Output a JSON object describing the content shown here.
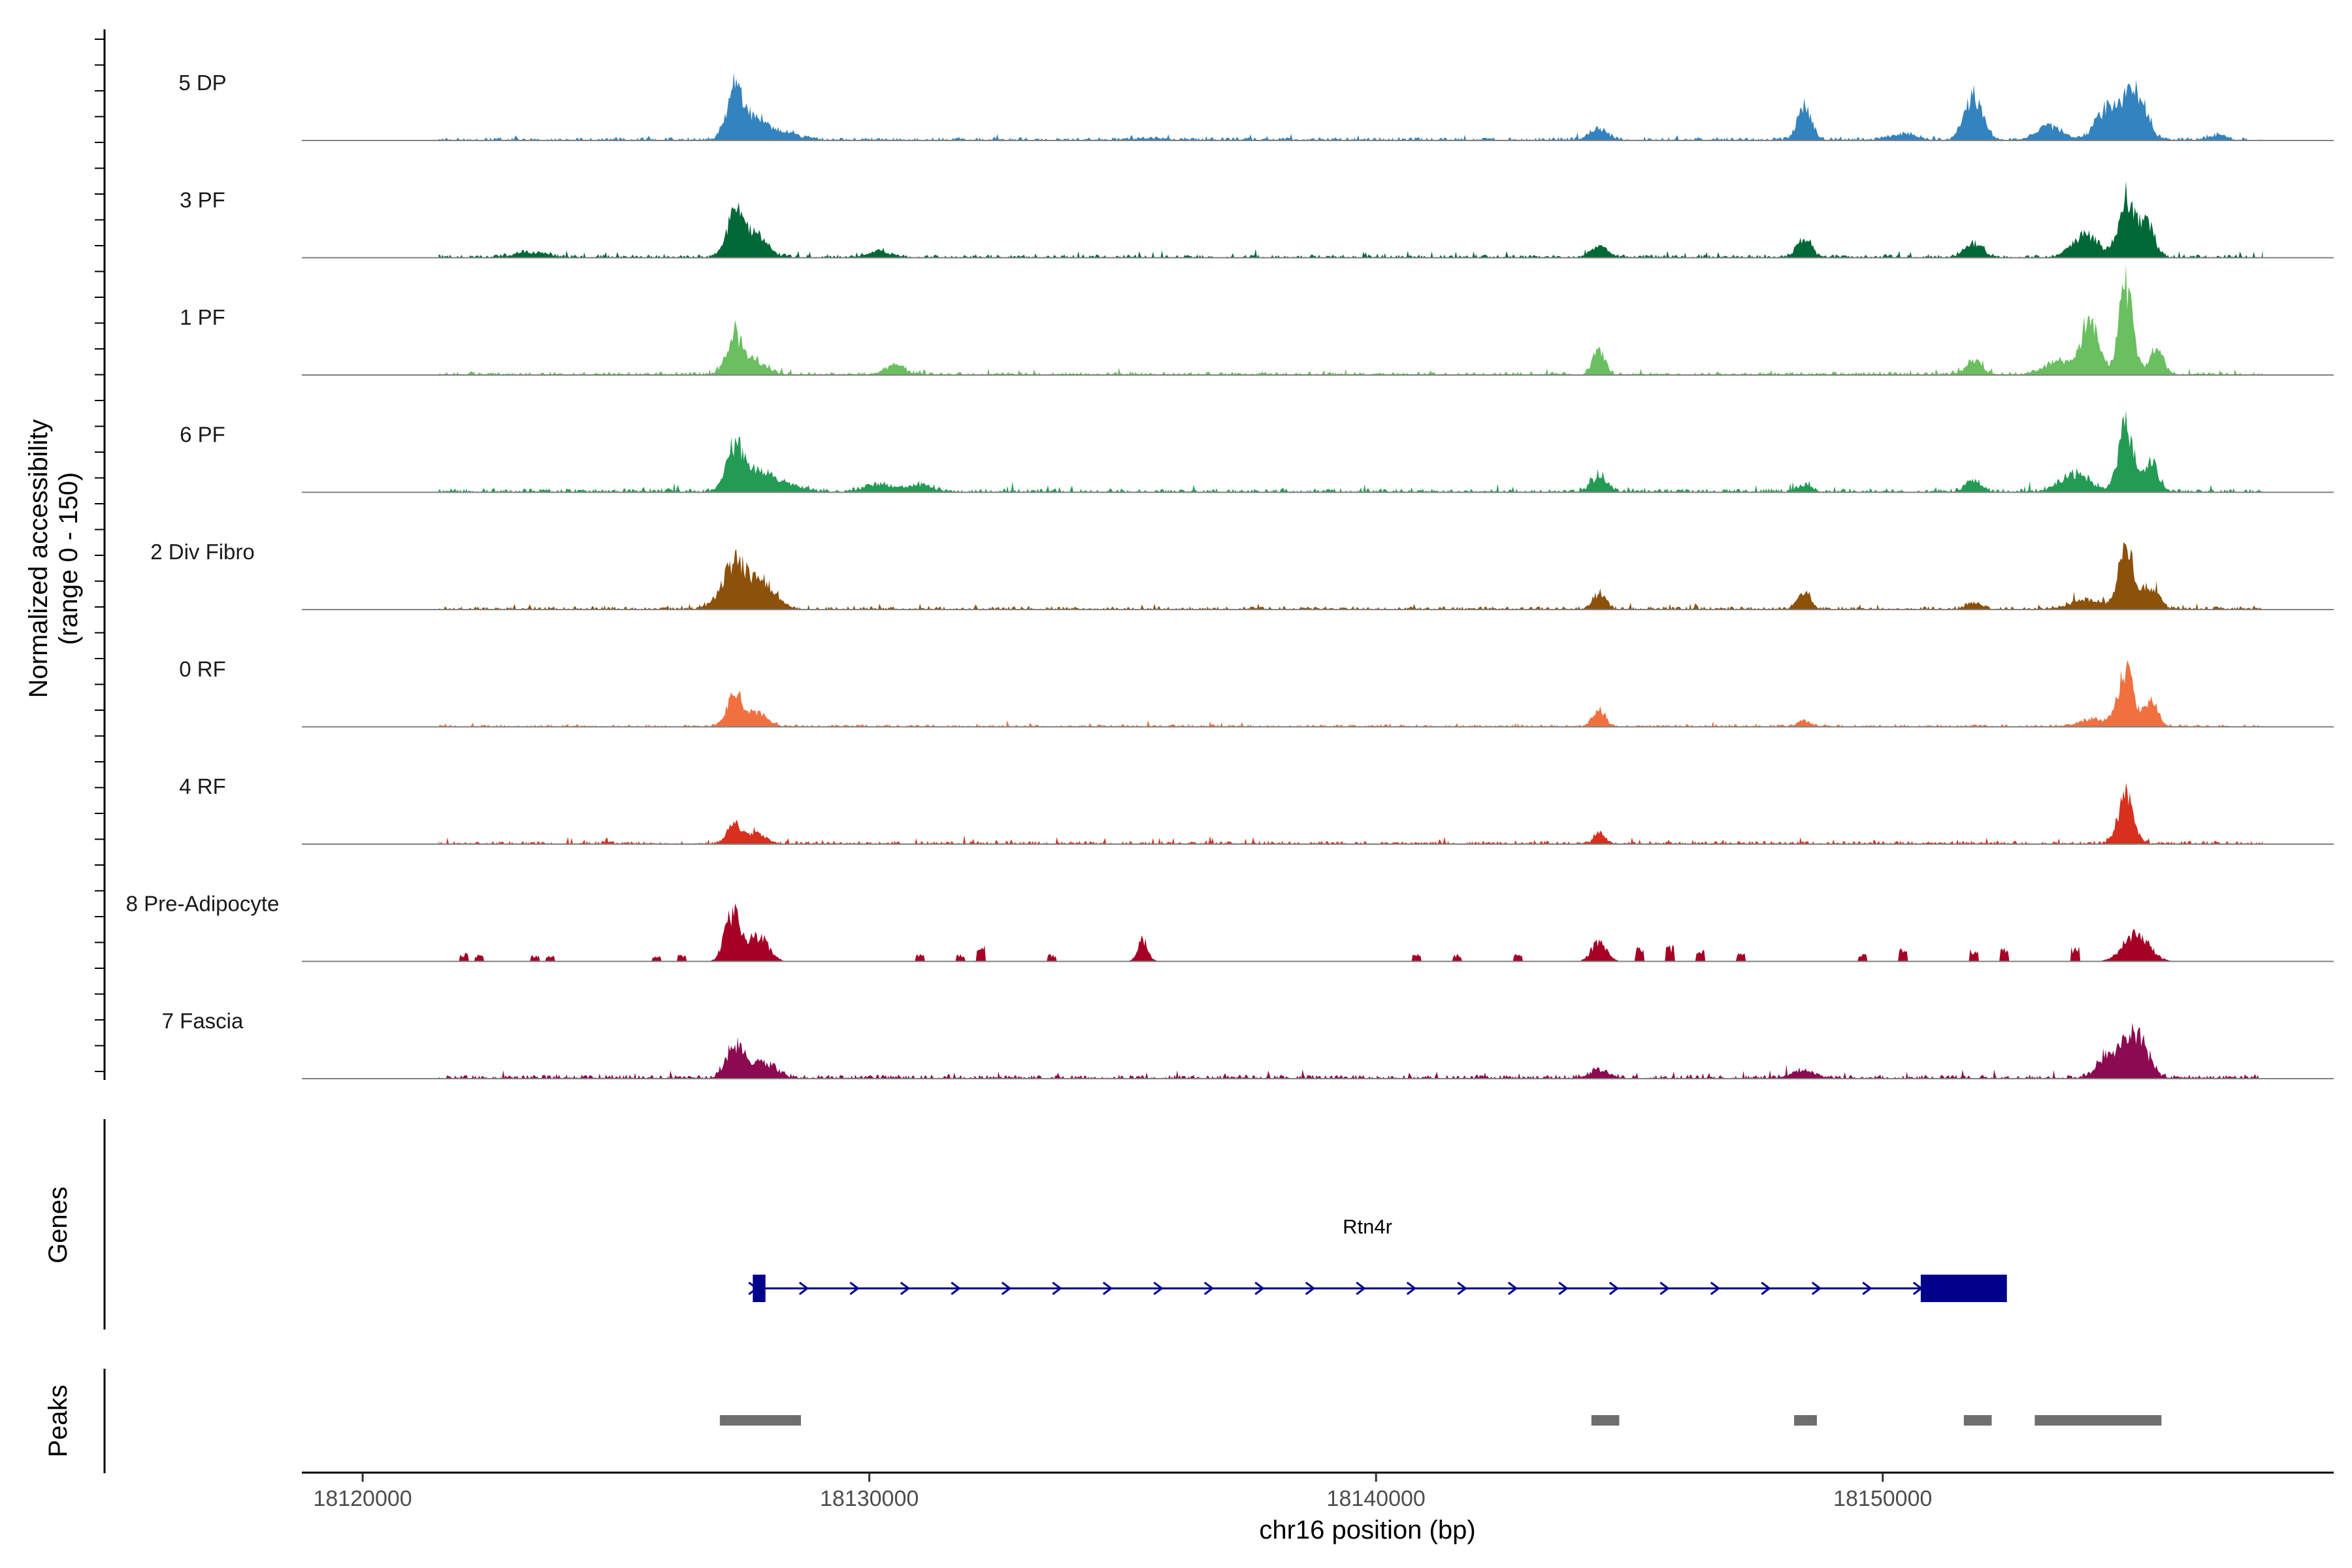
{
  "chart_data": {
    "type": "area",
    "chromosome": "chr16",
    "xlabel": "chr16 position (bp)",
    "xlim": [
      18118800,
      18158900
    ],
    "x_ticks": [
      18120000,
      18130000,
      18140000,
      18150000
    ],
    "x_tick_labels": [
      "18120000",
      "18130000",
      "18140000",
      "18150000"
    ],
    "coverage_ylabel_line1": "Normalized accessibility",
    "coverage_ylabel_line2": "(range 0 - 150)",
    "y_range": [
      0,
      150
    ],
    "tracks": [
      {
        "name": "5 DP",
        "color": "#3383BE",
        "baseline": 2.0,
        "peaks": [
          [
            18127350,
            80,
            170
          ],
          [
            18127800,
            30,
            200
          ],
          [
            18128300,
            12,
            300
          ],
          [
            18135500,
            3,
            200
          ],
          [
            18144400,
            18,
            170
          ],
          [
            18148450,
            50,
            140
          ],
          [
            18150400,
            10,
            250
          ],
          [
            18151800,
            70,
            180
          ],
          [
            18153300,
            22,
            250
          ],
          [
            18154500,
            55,
            250
          ],
          [
            18155000,
            70,
            200
          ],
          [
            18156600,
            8,
            150
          ]
        ]
      },
      {
        "name": "3 PF",
        "color": "#006837",
        "baseline": 2.0,
        "peaks": [
          [
            18127350,
            70,
            170
          ],
          [
            18127800,
            35,
            200
          ],
          [
            18123300,
            8,
            300
          ],
          [
            18130200,
            8,
            250
          ],
          [
            18144400,
            15,
            170
          ],
          [
            18148450,
            30,
            140
          ],
          [
            18151800,
            20,
            180
          ],
          [
            18154000,
            35,
            260
          ],
          [
            18154800,
            95,
            150
          ],
          [
            18155200,
            55,
            150
          ]
        ]
      },
      {
        "name": "1 PF",
        "color": "#6ABF60",
        "baseline": 2.0,
        "peaks": [
          [
            18127350,
            60,
            170
          ],
          [
            18127800,
            18,
            200
          ],
          [
            18130500,
            15,
            200
          ],
          [
            18144400,
            40,
            120
          ],
          [
            18151800,
            22,
            150
          ],
          [
            18153500,
            20,
            300
          ],
          [
            18154100,
            85,
            170
          ],
          [
            18154800,
            135,
            140
          ],
          [
            18155400,
            40,
            140
          ]
        ]
      },
      {
        "name": "6 PF",
        "color": "#239B55",
        "baseline": 2.5,
        "peaks": [
          [
            18127350,
            70,
            170
          ],
          [
            18127800,
            30,
            220
          ],
          [
            18128300,
            12,
            300
          ],
          [
            18130200,
            12,
            300
          ],
          [
            18131000,
            10,
            250
          ],
          [
            18144400,
            25,
            150
          ],
          [
            18148450,
            10,
            150
          ],
          [
            18151800,
            20,
            150
          ],
          [
            18153800,
            25,
            300
          ],
          [
            18154800,
            100,
            150
          ],
          [
            18155300,
            45,
            150
          ]
        ]
      },
      {
        "name": "2 Div Fibro",
        "color": "#8C510A",
        "baseline": 2.0,
        "peaks": [
          [
            18127350,
            70,
            250
          ],
          [
            18127900,
            40,
            250
          ],
          [
            18144400,
            25,
            120
          ],
          [
            18148450,
            25,
            130
          ],
          [
            18151800,
            10,
            150
          ],
          [
            18154000,
            15,
            300
          ],
          [
            18154800,
            95,
            150
          ],
          [
            18155300,
            35,
            150
          ]
        ]
      },
      {
        "name": "0 RF",
        "color": "#F07040",
        "baseline": 1.5,
        "peaks": [
          [
            18127350,
            50,
            150
          ],
          [
            18127800,
            20,
            200
          ],
          [
            18144400,
            30,
            120
          ],
          [
            18148450,
            8,
            130
          ],
          [
            18154200,
            12,
            300
          ],
          [
            18154800,
            85,
            150
          ],
          [
            18155300,
            40,
            130
          ]
        ]
      },
      {
        "name": "4 RF",
        "color": "#D7301F",
        "baseline": 2.0,
        "peaks": [
          [
            18127350,
            30,
            150
          ],
          [
            18127800,
            15,
            180
          ],
          [
            18144400,
            18,
            100
          ],
          [
            18154800,
            75,
            150
          ]
        ]
      },
      {
        "name": "8 Pre-Adipocyte",
        "color": "#A50026",
        "baseline": 0.0,
        "peaks": [
          [
            18127300,
            75,
            150
          ],
          [
            18127800,
            40,
            200
          ],
          [
            18135400,
            35,
            100
          ],
          [
            18144400,
            30,
            150
          ],
          [
            18155000,
            45,
            250
          ]
        ],
        "blocks": [
          [
            18122000,
            12
          ],
          [
            18122300,
            10
          ],
          [
            18123400,
            10
          ],
          [
            18123700,
            8
          ],
          [
            18125800,
            8
          ],
          [
            18126300,
            10
          ],
          [
            18131000,
            12
          ],
          [
            18131800,
            10
          ],
          [
            18132200,
            25
          ],
          [
            18133600,
            10
          ],
          [
            18140800,
            12
          ],
          [
            18141600,
            10
          ],
          [
            18142800,
            10
          ],
          [
            18145200,
            20
          ],
          [
            18145800,
            22
          ],
          [
            18146400,
            18
          ],
          [
            18147200,
            12
          ],
          [
            18149600,
            10
          ],
          [
            18150400,
            18
          ],
          [
            18151800,
            18
          ],
          [
            18152400,
            20
          ],
          [
            18153800,
            20
          ]
        ]
      },
      {
        "name": "7 Fascia",
        "color": "#8B0A50",
        "baseline": 2.5,
        "peaks": [
          [
            18127350,
            50,
            170
          ],
          [
            18127900,
            25,
            250
          ],
          [
            18144400,
            12,
            200
          ],
          [
            18148400,
            10,
            250
          ],
          [
            18154500,
            35,
            250
          ],
          [
            18155000,
            70,
            220
          ]
        ]
      }
    ],
    "genes_label": "Genes",
    "gene": {
      "name": "Rtn4r",
      "start": 18127700,
      "end": 18152450,
      "strand": "+",
      "color": "#00008B",
      "exons": [
        [
          18127700,
          18127950
        ],
        [
          18150750,
          18152450
        ]
      ]
    },
    "peaks_label": "Peaks",
    "peaks_color": "#6E6E6E",
    "peak_regions": [
      [
        18127050,
        18128650
      ],
      [
        18144250,
        18144800
      ],
      [
        18148250,
        18148700
      ],
      [
        18151600,
        18152150
      ],
      [
        18153000,
        18155500
      ]
    ]
  }
}
